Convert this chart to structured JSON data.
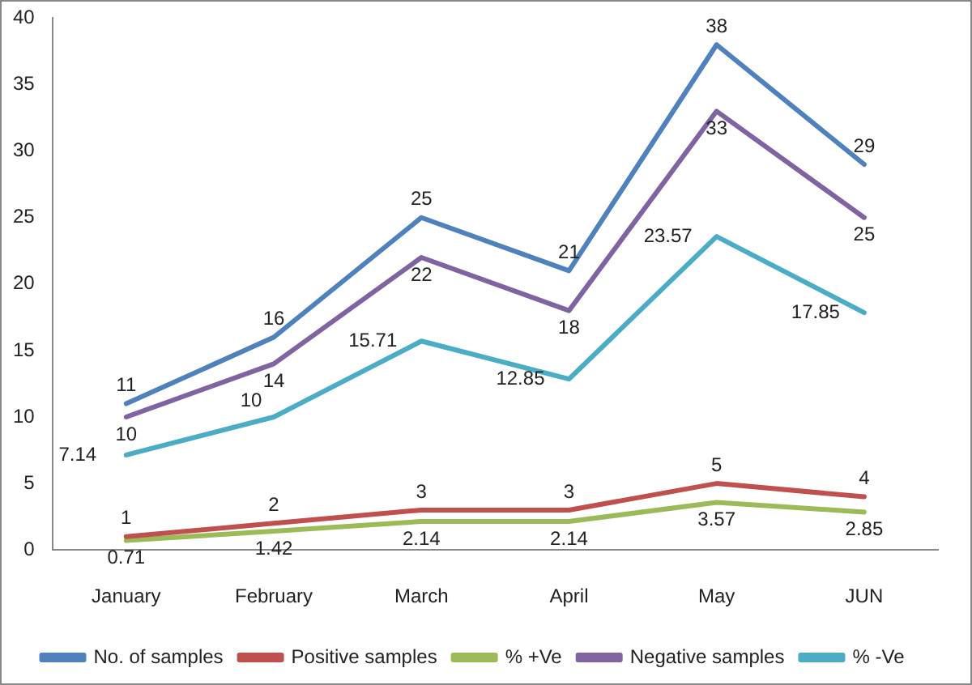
{
  "chart_data": {
    "type": "line",
    "categories": [
      "January",
      "February",
      "March",
      "April",
      "May",
      "JUN"
    ],
    "series": [
      {
        "name": "No. of samples",
        "color": "#4f81bd",
        "values": [
          11,
          16,
          25,
          21,
          38,
          29
        ]
      },
      {
        "name": "Positive samples",
        "color": "#c0504d",
        "values": [
          1,
          2,
          3,
          3,
          5,
          4
        ]
      },
      {
        "name": "% +Ve",
        "color": "#9bbb59",
        "values": [
          0.71,
          1.42,
          2.14,
          2.14,
          3.57,
          2.85
        ]
      },
      {
        "name": "Negative samples",
        "color": "#8064a2",
        "values": [
          10,
          14,
          22,
          18,
          33,
          25
        ]
      },
      {
        "name": "% -Ve",
        "color": "#4bacc6",
        "values": [
          7.14,
          10,
          15.71,
          12.85,
          23.57,
          17.85
        ]
      }
    ],
    "ylim": [
      0,
      40
    ],
    "yticks": [
      0,
      5,
      10,
      15,
      20,
      25,
      30,
      35,
      40
    ],
    "grid": false,
    "legend": "bottom",
    "marker": "none",
    "line_style": "solid",
    "data_labels": true
  }
}
